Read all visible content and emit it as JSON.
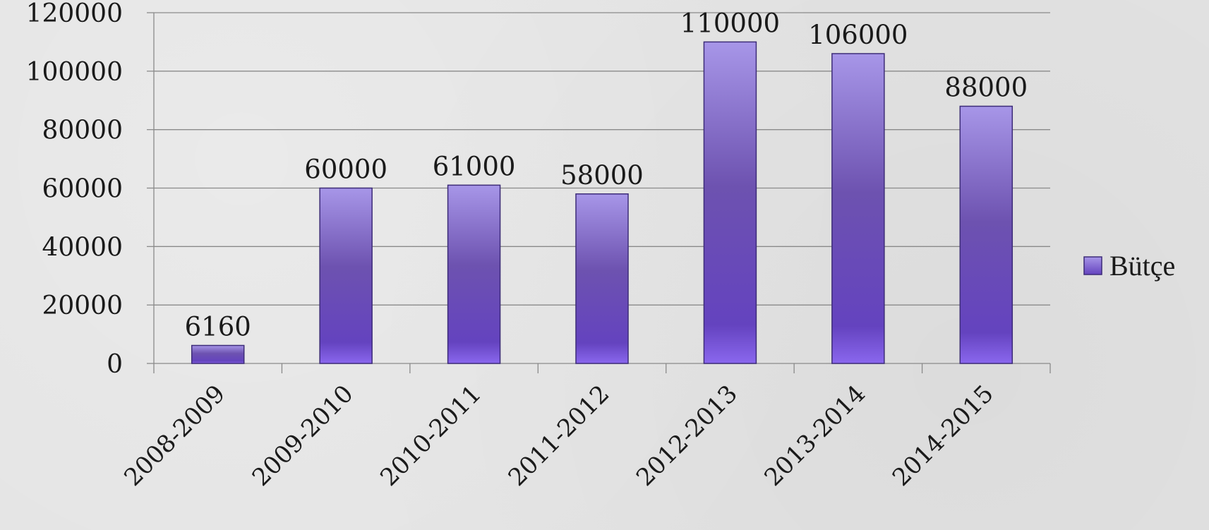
{
  "chart_data": {
    "type": "bar",
    "categories": [
      "2008-2009",
      "2009-2010",
      "2010-2011",
      "2011-2012",
      "2012-2013",
      "2013-2014",
      "2014-2015"
    ],
    "series": [
      {
        "name": "Bütçe",
        "values": [
          6160,
          60000,
          61000,
          58000,
          110000,
          106000,
          88000
        ],
        "color": "#7455c4"
      }
    ],
    "data_labels": [
      "6160",
      "60000",
      "61000",
      "58000",
      "110000",
      "106000",
      "88000"
    ],
    "y_ticks": [
      "0",
      "20000",
      "40000",
      "60000",
      "80000",
      "100000",
      "120000"
    ],
    "ylim": [
      0,
      120000
    ],
    "grid": true,
    "legend_position": "right",
    "title": "",
    "xlabel": "",
    "ylabel": ""
  }
}
